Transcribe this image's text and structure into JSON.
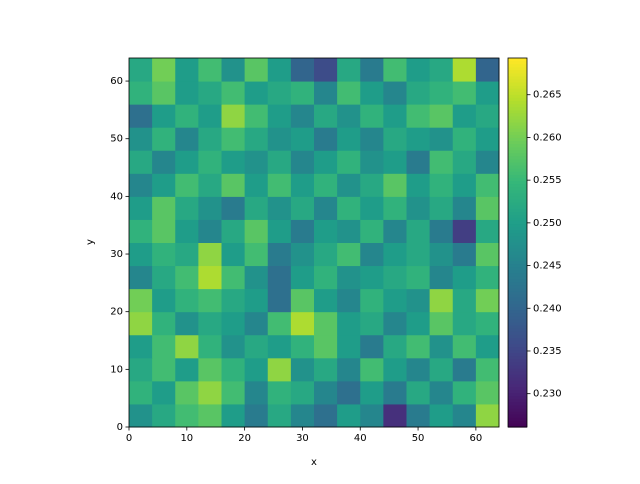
{
  "chart_data": {
    "type": "heatmap",
    "xlabel": "x",
    "ylabel": "y",
    "colormap": "viridis",
    "x_edges": [
      0,
      4,
      8,
      12,
      16,
      20,
      24,
      28,
      32,
      36,
      40,
      44,
      48,
      52,
      56,
      60,
      64
    ],
    "y_edges": [
      0,
      4,
      8,
      12,
      16,
      20,
      24,
      28,
      32,
      36,
      40,
      44,
      48,
      52,
      56,
      60,
      64
    ],
    "z": [
      [
        0.248,
        0.252,
        0.256,
        0.258,
        0.25,
        0.244,
        0.252,
        0.246,
        0.242,
        0.25,
        0.246,
        0.232,
        0.244,
        0.25,
        0.246,
        0.262
      ],
      [
        0.254,
        0.25,
        0.258,
        0.262,
        0.256,
        0.246,
        0.254,
        0.252,
        0.246,
        0.242,
        0.25,
        0.244,
        0.252,
        0.246,
        0.254,
        0.258
      ],
      [
        0.252,
        0.256,
        0.25,
        0.258,
        0.254,
        0.25,
        0.262,
        0.248,
        0.252,
        0.246,
        0.256,
        0.25,
        0.246,
        0.252,
        0.244,
        0.256
      ],
      [
        0.25,
        0.256,
        0.262,
        0.254,
        0.248,
        0.252,
        0.25,
        0.254,
        0.258,
        0.25,
        0.244,
        0.252,
        0.256,
        0.248,
        0.256,
        0.25
      ],
      [
        0.262,
        0.254,
        0.248,
        0.252,
        0.25,
        0.246,
        0.256,
        0.264,
        0.258,
        0.25,
        0.252,
        0.246,
        0.25,
        0.258,
        0.252,
        0.254
      ],
      [
        0.26,
        0.25,
        0.254,
        0.256,
        0.252,
        0.25,
        0.242,
        0.258,
        0.25,
        0.246,
        0.254,
        0.25,
        0.248,
        0.262,
        0.252,
        0.26
      ],
      [
        0.246,
        0.252,
        0.256,
        0.264,
        0.256,
        0.248,
        0.242,
        0.25,
        0.254,
        0.248,
        0.25,
        0.252,
        0.254,
        0.246,
        0.25,
        0.254
      ],
      [
        0.25,
        0.254,
        0.252,
        0.262,
        0.25,
        0.256,
        0.244,
        0.248,
        0.252,
        0.256,
        0.246,
        0.25,
        0.252,
        0.248,
        0.244,
        0.258
      ],
      [
        0.254,
        0.258,
        0.25,
        0.246,
        0.252,
        0.258,
        0.25,
        0.244,
        0.25,
        0.248,
        0.254,
        0.246,
        0.252,
        0.244,
        0.234,
        0.252
      ],
      [
        0.25,
        0.258,
        0.252,
        0.248,
        0.244,
        0.252,
        0.248,
        0.252,
        0.246,
        0.254,
        0.25,
        0.254,
        0.248,
        0.252,
        0.246,
        0.258
      ],
      [
        0.246,
        0.25,
        0.256,
        0.252,
        0.258,
        0.25,
        0.256,
        0.25,
        0.254,
        0.248,
        0.252,
        0.258,
        0.25,
        0.254,
        0.25,
        0.256
      ],
      [
        0.252,
        0.246,
        0.25,
        0.254,
        0.25,
        0.248,
        0.252,
        0.246,
        0.25,
        0.254,
        0.248,
        0.25,
        0.244,
        0.256,
        0.252,
        0.246
      ],
      [
        0.248,
        0.254,
        0.246,
        0.252,
        0.256,
        0.252,
        0.248,
        0.25,
        0.244,
        0.25,
        0.246,
        0.252,
        0.25,
        0.248,
        0.254,
        0.25
      ],
      [
        0.242,
        0.25,
        0.254,
        0.25,
        0.262,
        0.256,
        0.25,
        0.246,
        0.252,
        0.248,
        0.254,
        0.25,
        0.256,
        0.258,
        0.25,
        0.252
      ],
      [
        0.254,
        0.258,
        0.25,
        0.252,
        0.256,
        0.25,
        0.252,
        0.254,
        0.246,
        0.256,
        0.25,
        0.246,
        0.252,
        0.254,
        0.256,
        0.25
      ],
      [
        0.252,
        0.26,
        0.25,
        0.256,
        0.248,
        0.258,
        0.25,
        0.24,
        0.236,
        0.252,
        0.244,
        0.256,
        0.25,
        0.252,
        0.264,
        0.24
      ]
    ],
    "xlim": [
      0,
      64
    ],
    "ylim": [
      0,
      64
    ],
    "xticks": [
      0,
      10,
      20,
      30,
      40,
      50,
      60
    ],
    "yticks": [
      0,
      10,
      20,
      30,
      40,
      50,
      60
    ],
    "clim": [
      0.2261,
      0.2693
    ],
    "cticks": [
      {
        "value": 0.23,
        "label": "0.230"
      },
      {
        "value": 0.235,
        "label": "0.235"
      },
      {
        "value": 0.24,
        "label": "0.240"
      },
      {
        "value": 0.245,
        "label": "0.245"
      },
      {
        "value": 0.25,
        "label": "0.250"
      },
      {
        "value": 0.255,
        "label": "0.255"
      },
      {
        "value": 0.26,
        "label": "0.260"
      },
      {
        "value": 0.265,
        "label": "0.265"
      }
    ]
  }
}
